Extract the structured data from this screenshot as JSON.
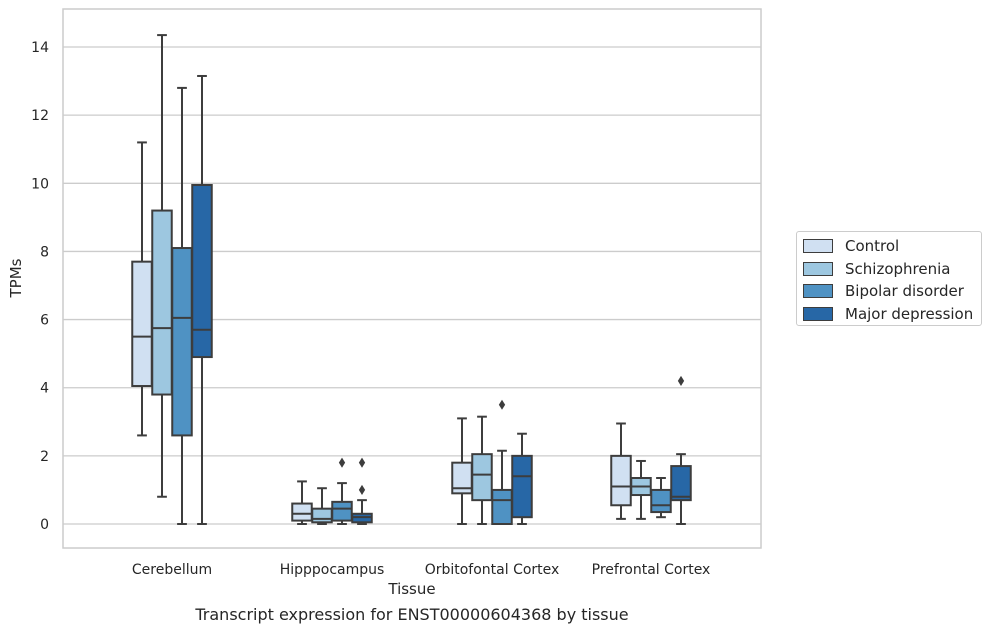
{
  "caption": "Transcript expression for ENST00000604368 by tissue",
  "chart_data": {
    "type": "box",
    "title": "",
    "xlabel": "Tissue",
    "ylabel": "TPMs",
    "ylim": [
      -0.7,
      15.1
    ],
    "yticks": [
      0,
      2,
      4,
      6,
      8,
      10,
      12,
      14
    ],
    "grid": "horizontal",
    "legend_position": "right",
    "categories": [
      "Cerebellum",
      "Hipppocampus",
      "Orbitofontal Cortex",
      "Prefrontal Cortex"
    ],
    "series": [
      {
        "name": "Control",
        "color": "#d0e0f2",
        "boxes": [
          {
            "whislo": 2.6,
            "q1": 4.05,
            "med": 5.5,
            "q3": 7.7,
            "whishi": 11.2,
            "fliers": []
          },
          {
            "whislo": 0.0,
            "q1": 0.1,
            "med": 0.3,
            "q3": 0.6,
            "whishi": 1.25,
            "fliers": []
          },
          {
            "whislo": 0.0,
            "q1": 0.9,
            "med": 1.05,
            "q3": 1.8,
            "whishi": 3.1,
            "fliers": []
          },
          {
            "whislo": 0.15,
            "q1": 0.55,
            "med": 1.1,
            "q3": 2.0,
            "whishi": 2.95,
            "fliers": []
          }
        ]
      },
      {
        "name": "Schizophrenia",
        "color": "#9dc7e0",
        "boxes": [
          {
            "whislo": 0.8,
            "q1": 3.8,
            "med": 5.75,
            "q3": 9.2,
            "whishi": 14.35,
            "fliers": []
          },
          {
            "whislo": 0.0,
            "q1": 0.05,
            "med": 0.15,
            "q3": 0.45,
            "whishi": 1.05,
            "fliers": []
          },
          {
            "whislo": 0.0,
            "q1": 0.7,
            "med": 1.45,
            "q3": 2.05,
            "whishi": 3.15,
            "fliers": []
          },
          {
            "whislo": 0.15,
            "q1": 0.85,
            "med": 1.1,
            "q3": 1.35,
            "whishi": 1.85,
            "fliers": []
          }
        ]
      },
      {
        "name": "Bipolar disorder",
        "color": "#4f92c3",
        "boxes": [
          {
            "whislo": 0.0,
            "q1": 2.6,
            "med": 6.05,
            "q3": 8.1,
            "whishi": 12.8,
            "fliers": []
          },
          {
            "whislo": 0.0,
            "q1": 0.1,
            "med": 0.45,
            "q3": 0.65,
            "whishi": 1.2,
            "fliers": [
              1.8
            ]
          },
          {
            "whislo": 0.0,
            "q1": 0.0,
            "med": 0.7,
            "q3": 1.0,
            "whishi": 2.15,
            "fliers": [
              3.5
            ]
          },
          {
            "whislo": 0.2,
            "q1": 0.35,
            "med": 0.55,
            "q3": 1.0,
            "whishi": 1.35,
            "fliers": []
          }
        ]
      },
      {
        "name": "Major depression",
        "color": "#2767a6",
        "boxes": [
          {
            "whislo": 0.0,
            "q1": 4.9,
            "med": 5.7,
            "q3": 9.95,
            "whishi": 13.15,
            "fliers": []
          },
          {
            "whislo": 0.0,
            "q1": 0.05,
            "med": 0.2,
            "q3": 0.3,
            "whishi": 0.7,
            "fliers": [
              1.0,
              1.8
            ]
          },
          {
            "whislo": 0.0,
            "q1": 0.2,
            "med": 1.4,
            "q3": 2.0,
            "whishi": 2.65,
            "fliers": []
          },
          {
            "whislo": 0.0,
            "q1": 0.7,
            "med": 0.8,
            "q3": 1.7,
            "whishi": 2.05,
            "fliers": [
              4.2
            ]
          }
        ]
      }
    ]
  }
}
